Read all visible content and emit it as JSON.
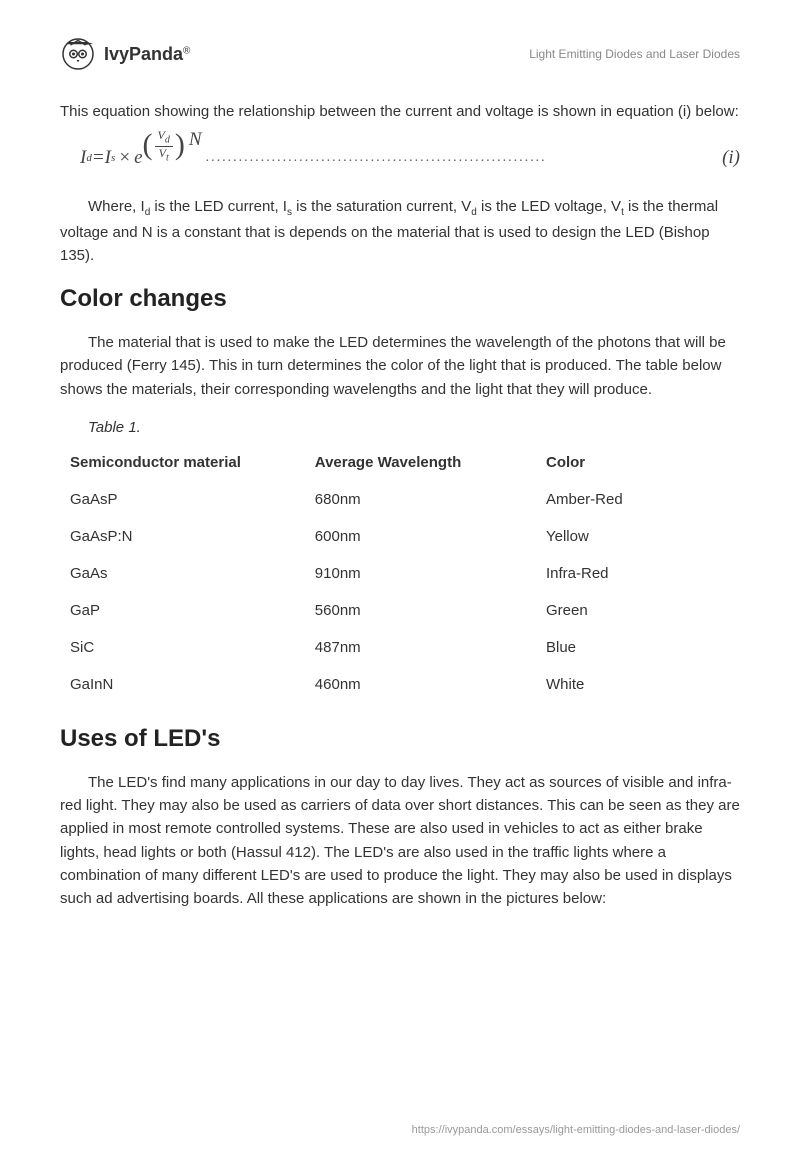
{
  "brand": {
    "name": "IvyPanda",
    "registered": "®"
  },
  "doc_title": "Light Emitting Diodes and Laser Diodes",
  "intro_para": "This equation showing the relationship between the current and voltage is shown in equation (i) below:",
  "equation": {
    "lhs_var": "I",
    "lhs_sub": "d",
    "eq": "=",
    "Is_var": "I",
    "Is_sub": "s",
    "times": "×",
    "e": "e",
    "frac_num_var": "V",
    "frac_num_sub": "d",
    "frac_den_var": "V",
    "frac_den_sub": "t",
    "N": "N",
    "dots": "..............................................................",
    "label_open": "(",
    "label_i": "i",
    "label_close": ")"
  },
  "where_para": {
    "pre": "Where, I",
    "d": "d",
    "mid1": " is the LED current, I",
    "s": "s",
    "mid2": " is the saturation current, V",
    "dd": "d",
    "mid3": " is the LED voltage, V",
    "t": "t",
    "post": " is the thermal voltage and N is a constant that is depends on the material that is used to design the LED (Bishop 135)."
  },
  "section_color": "Color changes",
  "color_para": "The material that is used to make the LED determines the wavelength of the photons that will be produced (Ferry 145). This in turn determines the color of the light that is produced. The table below shows the materials, their corresponding wavelengths and the light that they will produce.",
  "table": {
    "caption": "Table 1.",
    "columns": [
      "Semiconductor material",
      "Average Wavelength",
      "Color"
    ],
    "rows": [
      [
        "GaAsP",
        "680nm",
        "Amber-Red"
      ],
      [
        "GaAsP:N",
        "600nm",
        "Yellow"
      ],
      [
        "GaAs",
        "910nm",
        "Infra-Red"
      ],
      [
        "GaP",
        "560nm",
        "Green"
      ],
      [
        "SiC",
        "487nm",
        "Blue"
      ],
      [
        "GaInN",
        "460nm",
        "White"
      ]
    ],
    "col_widths": [
      "36%",
      "34%",
      "30%"
    ]
  },
  "section_uses": "Uses of LED's",
  "uses_para": "The LED's find many applications in our day to day lives. They act as sources of visible and infra-red light. They may also be used as carriers of data over short distances. This can be seen as they are applied in most remote controlled systems. These are also used in vehicles to act as either brake lights, head lights or both (Hassul 412). The LED's are also used in the traffic lights where a combination of many different LED's are used to produce the light. They may also be used in displays such ad advertising boards. All these applications are shown in the pictures below:",
  "footer_url": "https://ivypanda.com/essays/light-emitting-diodes-and-laser-diodes/"
}
